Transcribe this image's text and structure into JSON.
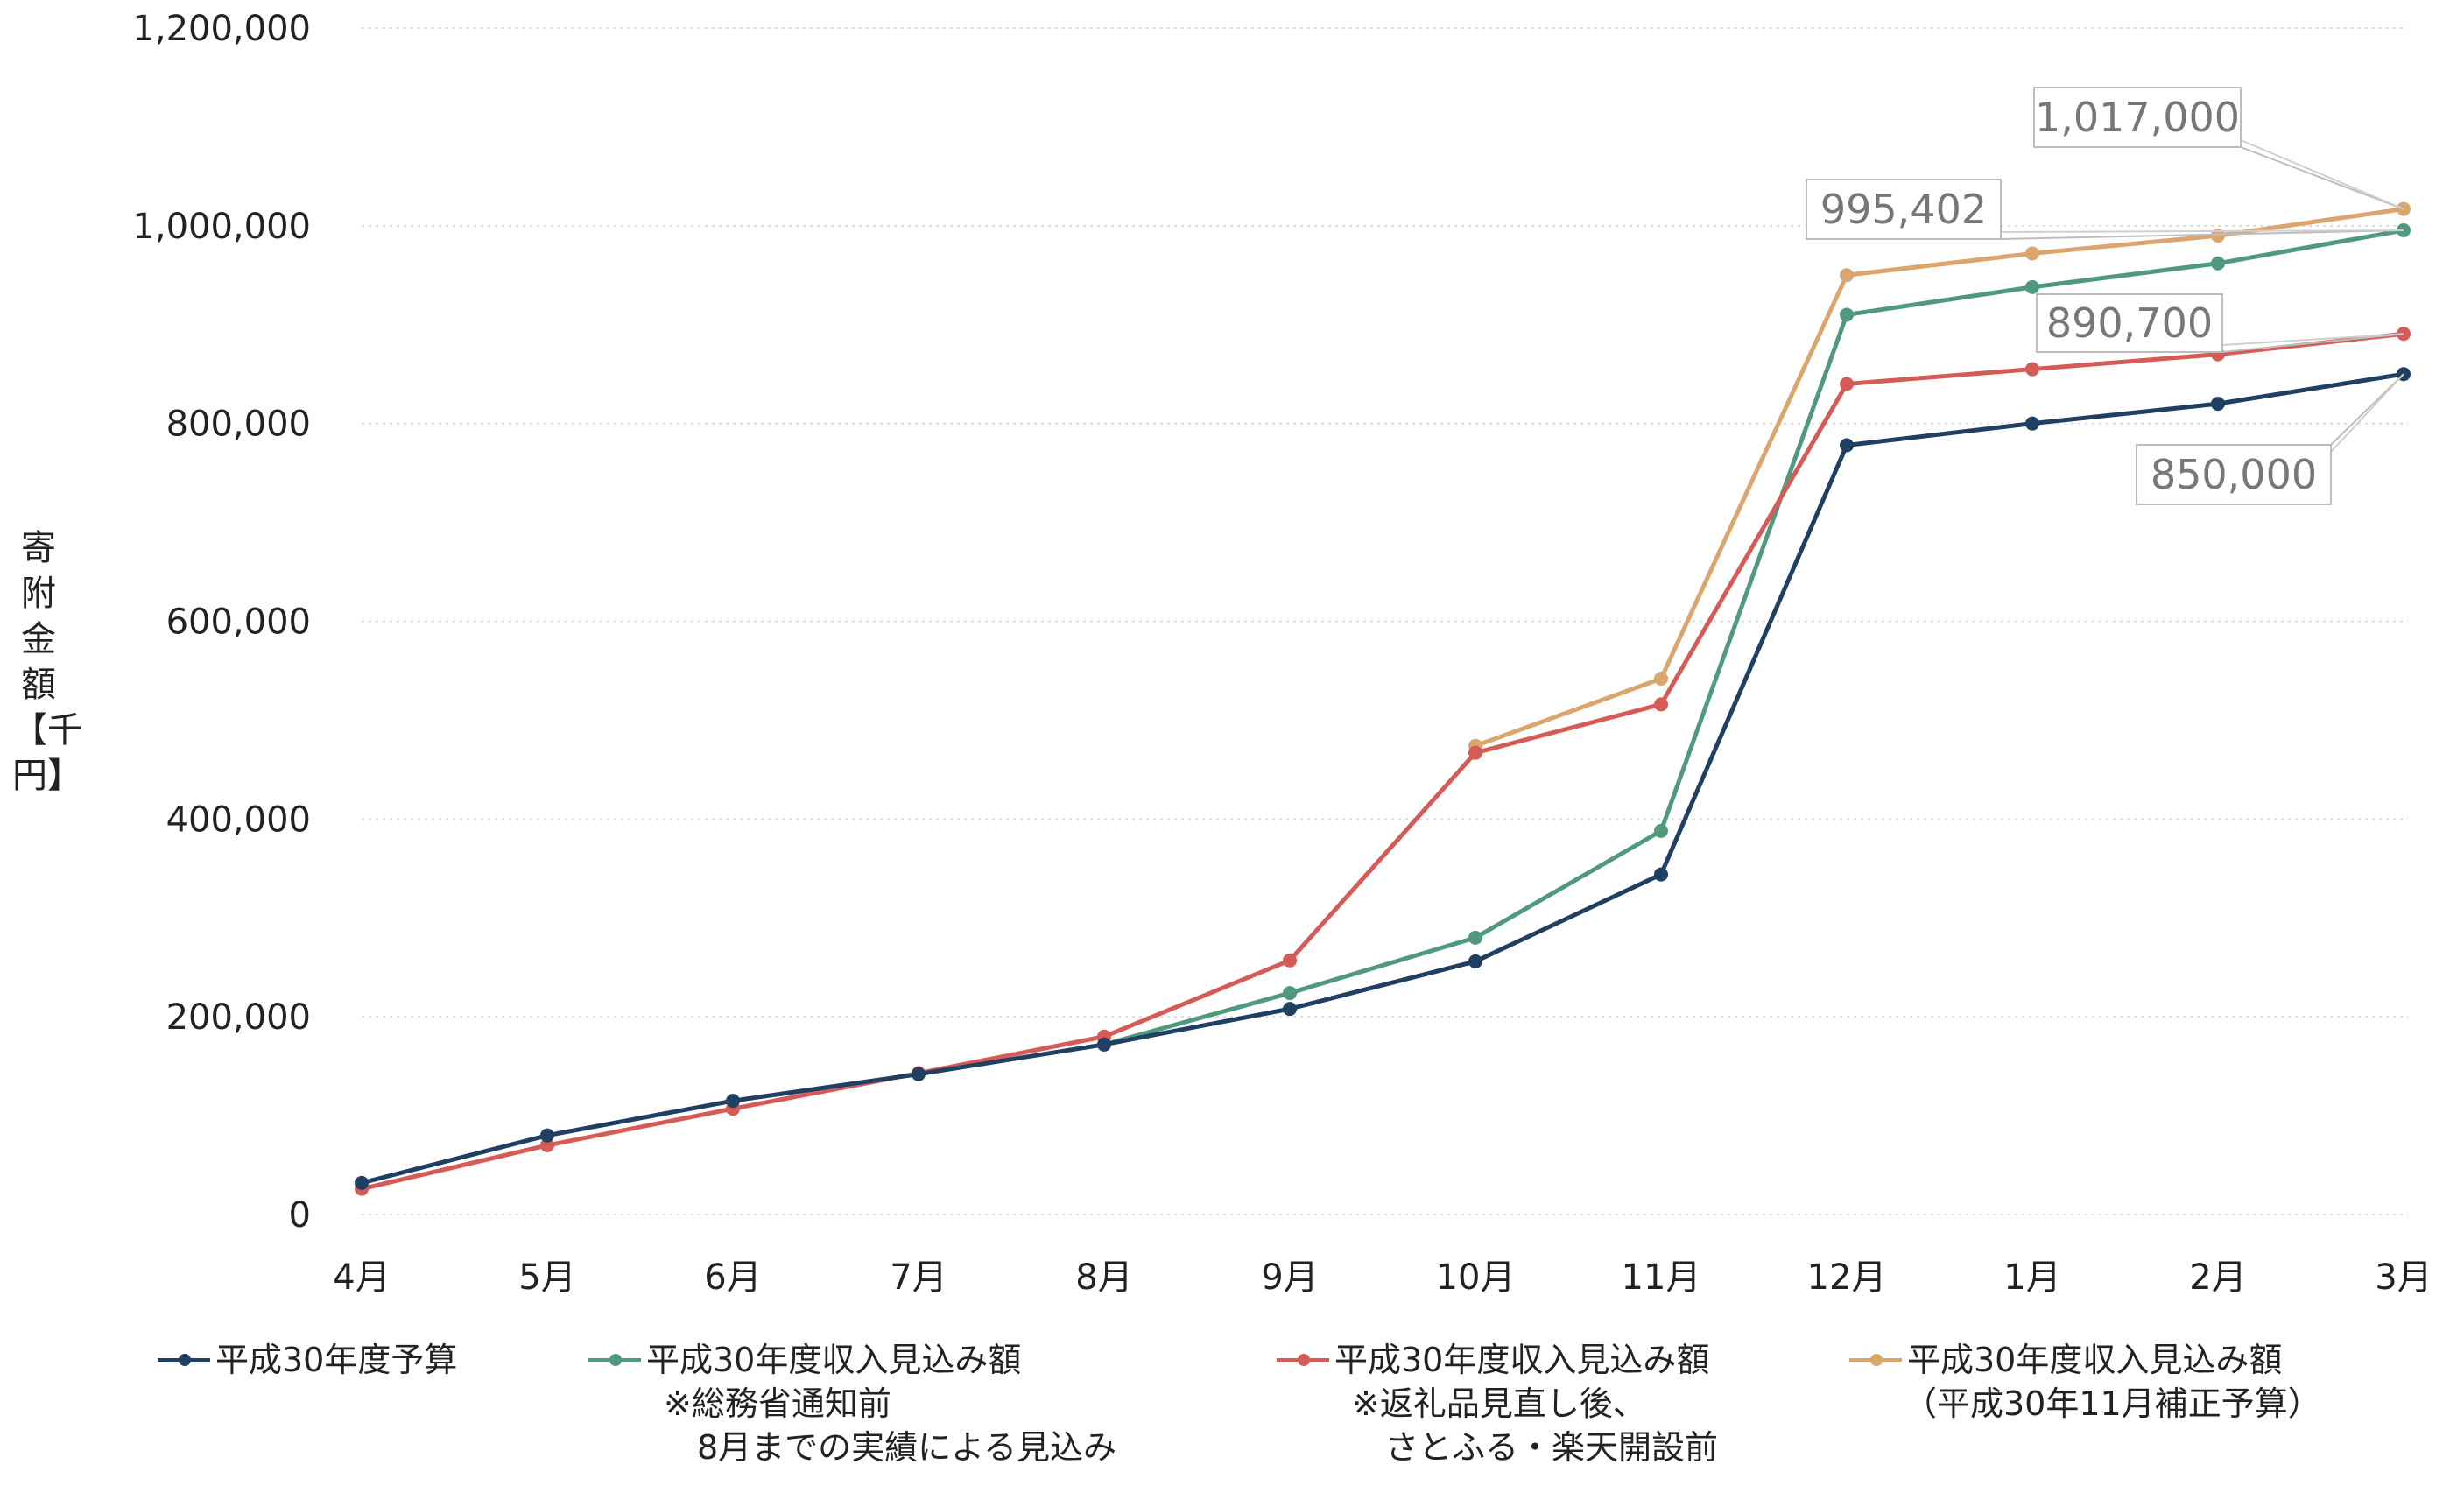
{
  "chart_data": {
    "type": "line",
    "title": "",
    "xlabel": "",
    "ylabel": "寄附金額【千円】",
    "categories": [
      "4月",
      "5月",
      "6月",
      "7月",
      "8月",
      "9月",
      "10月",
      "11月",
      "12月",
      "1月",
      "2月",
      "3月"
    ],
    "ylim": [
      0,
      1200000
    ],
    "yticks": [
      "0",
      "200,000",
      "400,000",
      "600,000",
      "800,000",
      "1,000,000",
      "1,200,000"
    ],
    "grid": true,
    "legend_position": "bottom",
    "series": [
      {
        "name": "平成30年度予算",
        "color": "#1f3f63",
        "values": [
          32000,
          80000,
          115000,
          142000,
          172000,
          208000,
          256000,
          344000,
          778000,
          800000,
          820000,
          850000
        ]
      },
      {
        "name": "平成30年度収入見込み額",
        "note": "※総務省通知前\n　8月までの実績による見込み",
        "color": "#4f9a7d",
        "values": [
          null,
          null,
          null,
          null,
          172000,
          224000,
          280000,
          388000,
          910000,
          938000,
          962000,
          995402
        ]
      },
      {
        "name": "平成30年度収入見込み額",
        "note": "※返礼品見直し後、\n　さとふる・楽天開設前",
        "color": "#d65a55",
        "values": [
          26000,
          70000,
          107000,
          143000,
          180000,
          257000,
          467000,
          516000,
          840000,
          855000,
          870000,
          890700
        ]
      },
      {
        "name": "平成30年度収入見込み額",
        "note": "（平成30年11月補正予算）",
        "color": "#dba56e",
        "values": [
          null,
          null,
          null,
          null,
          null,
          null,
          474000,
          542000,
          950000,
          972000,
          990000,
          1017000
        ]
      }
    ],
    "callouts": [
      {
        "text": "1,017,000",
        "series": 3
      },
      {
        "text": "995,402",
        "series": 1
      },
      {
        "text": "890,700",
        "series": 2
      },
      {
        "text": "850,000",
        "series": 0
      }
    ]
  }
}
